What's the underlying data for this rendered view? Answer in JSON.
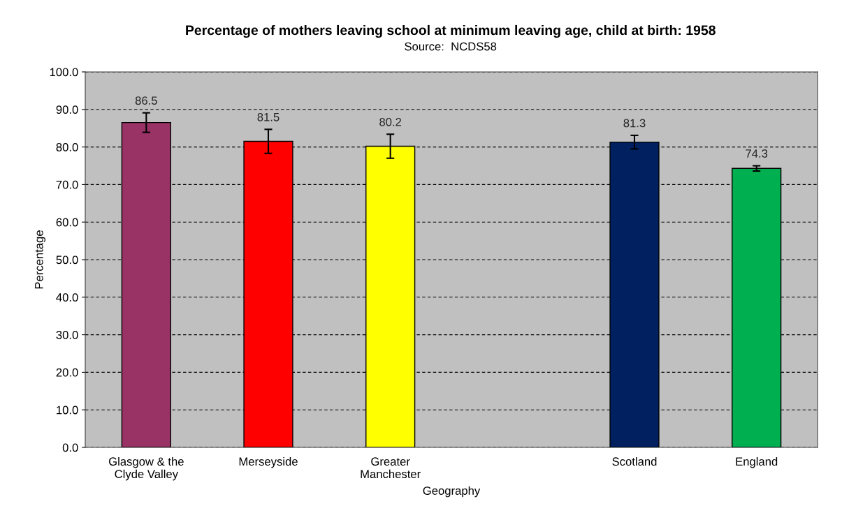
{
  "chart_data": {
    "type": "bar",
    "title": "Percentage of mothers leaving school at minimum leaving age, child at birth: 1958",
    "subtitle": "Source:  NCDS58",
    "xlabel": "Geography",
    "ylabel": "Percentage",
    "categories": [
      "Glasgow & the\nClyde Valley",
      "Merseyside",
      "Greater\nManchester",
      null,
      "Scotland",
      "England"
    ],
    "values": [
      86.5,
      81.5,
      80.2,
      null,
      81.3,
      74.3
    ],
    "errors": [
      2.6,
      3.2,
      3.2,
      null,
      1.8,
      0.7
    ],
    "colors": [
      "#993366",
      "#ff0000",
      "#ffff00",
      "#c0c0c0",
      "#002060",
      "#00b050"
    ],
    "ylim": [
      0,
      100
    ],
    "yticks": [
      {
        "value": 0,
        "label": "0.0"
      },
      {
        "value": 10,
        "label": "10.0"
      },
      {
        "value": 20,
        "label": "20.0"
      },
      {
        "value": 30,
        "label": "30.0"
      },
      {
        "value": 40,
        "label": "40.0"
      },
      {
        "value": 50,
        "label": "50.0"
      },
      {
        "value": 60,
        "label": "60.0"
      },
      {
        "value": 70,
        "label": "70.0"
      },
      {
        "value": 80,
        "label": "80.0"
      },
      {
        "value": 90,
        "label": "90.0"
      },
      {
        "value": 100,
        "label": "100.0"
      }
    ],
    "grid": "y",
    "data_labels": true
  }
}
